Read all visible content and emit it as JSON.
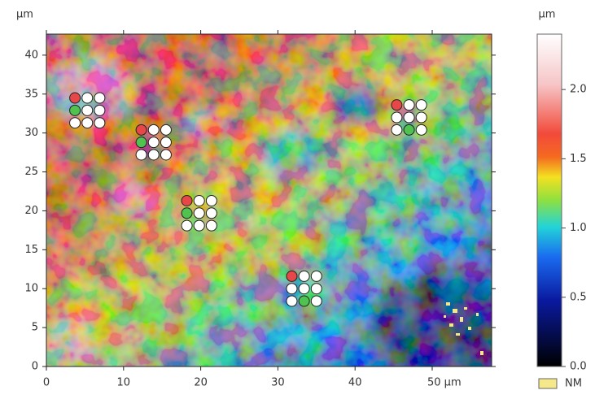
{
  "chart_data": {
    "type": "heatmap",
    "y_label": "µm",
    "xlim": [
      0,
      57.7
    ],
    "ylim": [
      0,
      42.7
    ],
    "xticks": [
      0,
      10,
      20,
      30,
      40,
      {
        "value": 50,
        "label": "50 µm"
      }
    ],
    "yticks": [
      0,
      5,
      10,
      15,
      20,
      25,
      30,
      35,
      40
    ],
    "colorbar": {
      "label": "µm",
      "lim": [
        0,
        2.4
      ],
      "ticks": [
        {
          "value": 0,
          "label": "0.0"
        },
        {
          "value": 0.5,
          "label": "0.5"
        },
        {
          "value": 1,
          "label": "1.0"
        },
        {
          "value": 1.5,
          "label": "1.5"
        },
        {
          "value": 2,
          "label": "2.0"
        }
      ]
    },
    "legend": [
      {
        "name": "NM",
        "color": "#f5e88a"
      }
    ],
    "markers": [
      {
        "x": [
          3.7,
          5.3,
          6.9
        ],
        "y": [
          34.5,
          32.9,
          31.3
        ],
        "colors": [
          "#e8474a",
          "#ffffff",
          "#ffffff",
          "#4fc24f",
          "#ffffff",
          "#ffffff",
          "#ffffff",
          "#ffffff",
          "#ffffff"
        ]
      },
      {
        "x": [
          12.3,
          13.9,
          15.5
        ],
        "y": [
          30.4,
          28.8,
          27.2
        ],
        "colors": [
          "#e8474a",
          "#ffffff",
          "#ffffff",
          "#4fc24f",
          "#ffffff",
          "#ffffff",
          "#ffffff",
          "#ffffff",
          "#ffffff"
        ]
      },
      {
        "x": [
          18.2,
          19.8,
          21.4
        ],
        "y": [
          21.3,
          19.7,
          18.1
        ],
        "colors": [
          "#e8474a",
          "#ffffff",
          "#ffffff",
          "#4fc24f",
          "#ffffff",
          "#ffffff",
          "#ffffff",
          "#ffffff",
          "#ffffff"
        ]
      },
      {
        "x": [
          45.4,
          47.0,
          48.6
        ],
        "y": [
          33.6,
          32.0,
          30.4
        ],
        "colors": [
          "#e8474a",
          "#ffffff",
          "#ffffff",
          "#ffffff",
          "#ffffff",
          "#ffffff",
          "#ffffff",
          "#4fc24f",
          "#ffffff"
        ]
      },
      {
        "x": [
          31.8,
          33.4,
          35.0
        ],
        "y": [
          11.6,
          10.0,
          8.4
        ],
        "colors": [
          "#e8474a",
          "#ffffff",
          "#ffffff",
          "#ffffff",
          "#ffffff",
          "#ffffff",
          "#ffffff",
          "#4fc24f",
          "#ffffff"
        ]
      }
    ]
  }
}
